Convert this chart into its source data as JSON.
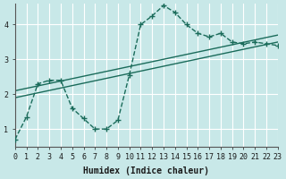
{
  "xlabel": "Humidex (Indice chaleur)",
  "background_color": "#c8e8e8",
  "grid_color": "#ffffff",
  "line_color": "#1a6b5a",
  "xlim": [
    0,
    23
  ],
  "ylim": [
    0.5,
    4.6
  ],
  "x_ticks": [
    0,
    1,
    2,
    3,
    4,
    5,
    6,
    7,
    8,
    9,
    10,
    11,
    12,
    13,
    14,
    15,
    16,
    17,
    18,
    19,
    20,
    21,
    22,
    23
  ],
  "y_ticks": [
    1,
    2,
    3,
    4
  ],
  "curve1_x": [
    0,
    1,
    2,
    3,
    4,
    5,
    6,
    7,
    8,
    9,
    10,
    11,
    12,
    13,
    14,
    15,
    16,
    17,
    18,
    19,
    20,
    21,
    22,
    23
  ],
  "curve1_y": [
    0.7,
    1.35,
    2.3,
    2.4,
    2.4,
    1.6,
    1.3,
    1.0,
    1.0,
    1.25,
    2.55,
    4.0,
    4.25,
    4.55,
    4.35,
    4.0,
    3.75,
    3.65,
    3.75,
    3.5,
    3.45,
    3.5,
    3.45,
    3.4
  ],
  "curve2_x": [
    0,
    23
  ],
  "curve2_y": [
    1.9,
    3.5
  ],
  "curve3_x": [
    0,
    23
  ],
  "curve3_y": [
    2.1,
    3.7
  ]
}
